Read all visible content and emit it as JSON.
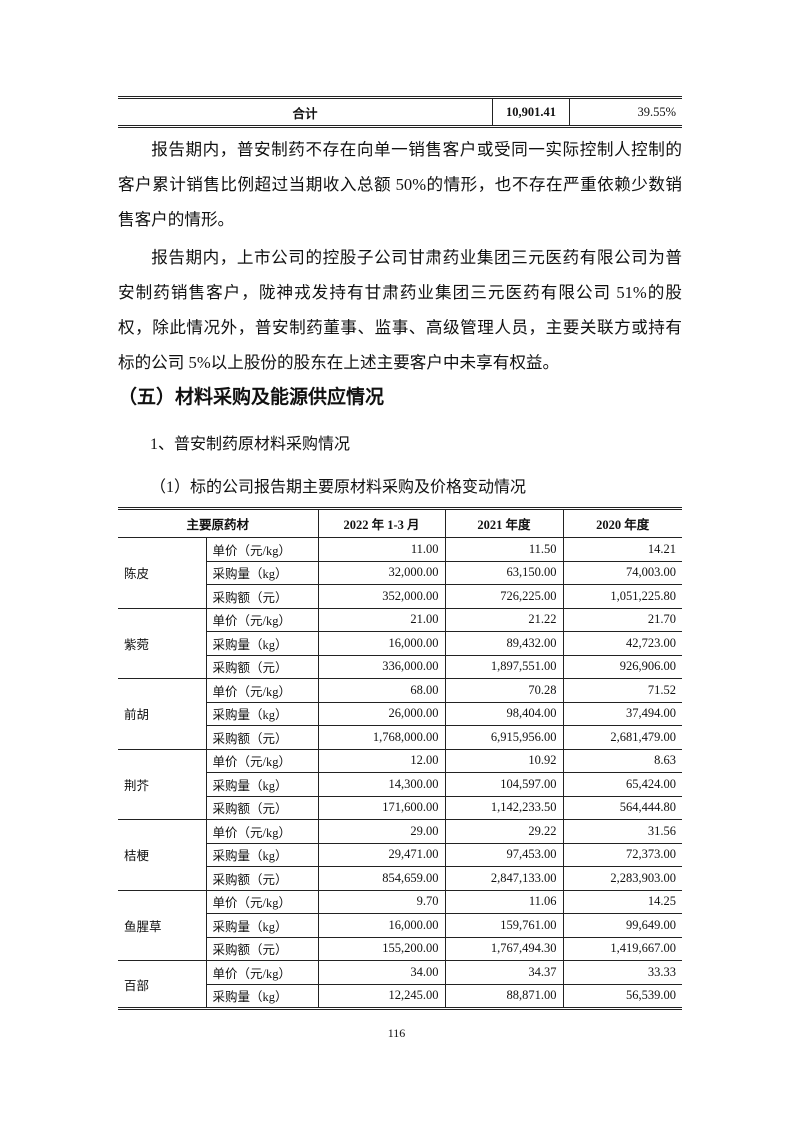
{
  "top_table": {
    "label": "合计",
    "value": "10,901.41",
    "percent": "39.55%"
  },
  "paragraphs": [
    "报告期内，普安制药不存在向单一销售客户或受同一实际控制人控制的客户累计销售比例超过当期收入总额 50%的情形，也不存在严重依赖少数销售客户的情形。",
    "报告期内，上市公司的控股子公司甘肃药业集团三元医药有限公司为普安制药销售客户，陇神戎发持有甘肃药业集团三元医药有限公司 51%的股权，除此情况外，普安制药董事、监事、高级管理人员，主要关联方或持有标的公司 5%以上股份的股东在上述主要客户中未享有权益。"
  ],
  "heading": "（五）材料采购及能源供应情况",
  "subheading1": "1、普安制药原材料采购情况",
  "subheading2": "（1）标的公司报告期主要原材料采购及价格变动情况",
  "table": {
    "headers": [
      "主要原药材",
      "2022 年 1-3 月",
      "2021 年度",
      "2020 年度"
    ],
    "groups": [
      {
        "name": "陈皮",
        "rows": [
          [
            "单价（元/kg）",
            "11.00",
            "11.50",
            "14.21"
          ],
          [
            "采购量（kg）",
            "32,000.00",
            "63,150.00",
            "74,003.00"
          ],
          [
            "采购额（元）",
            "352,000.00",
            "726,225.00",
            "1,051,225.80"
          ]
        ]
      },
      {
        "name": "紫菀",
        "rows": [
          [
            "单价（元/kg）",
            "21.00",
            "21.22",
            "21.70"
          ],
          [
            "采购量（kg）",
            "16,000.00",
            "89,432.00",
            "42,723.00"
          ],
          [
            "采购额（元）",
            "336,000.00",
            "1,897,551.00",
            "926,906.00"
          ]
        ]
      },
      {
        "name": "前胡",
        "rows": [
          [
            "单价（元/kg）",
            "68.00",
            "70.28",
            "71.52"
          ],
          [
            "采购量（kg）",
            "26,000.00",
            "98,404.00",
            "37,494.00"
          ],
          [
            "采购额（元）",
            "1,768,000.00",
            "6,915,956.00",
            "2,681,479.00"
          ]
        ]
      },
      {
        "name": "荆芥",
        "rows": [
          [
            "单价（元/kg）",
            "12.00",
            "10.92",
            "8.63"
          ],
          [
            "采购量（kg）",
            "14,300.00",
            "104,597.00",
            "65,424.00"
          ],
          [
            "采购额（元）",
            "171,600.00",
            "1,142,233.50",
            "564,444.80"
          ]
        ]
      },
      {
        "name": "桔梗",
        "rows": [
          [
            "单价（元/kg）",
            "29.00",
            "29.22",
            "31.56"
          ],
          [
            "采购量（kg）",
            "29,471.00",
            "97,453.00",
            "72,373.00"
          ],
          [
            "采购额（元）",
            "854,659.00",
            "2,847,133.00",
            "2,283,903.00"
          ]
        ]
      },
      {
        "name": "鱼腥草",
        "rows": [
          [
            "单价（元/kg）",
            "9.70",
            "11.06",
            "14.25"
          ],
          [
            "采购量（kg）",
            "16,000.00",
            "159,761.00",
            "99,649.00"
          ],
          [
            "采购额（元）",
            "155,200.00",
            "1,767,494.30",
            "1,419,667.00"
          ]
        ]
      },
      {
        "name": "百部",
        "rows": [
          [
            "单价（元/kg）",
            "34.00",
            "34.37",
            "33.33"
          ],
          [
            "采购量（kg）",
            "12,245.00",
            "88,871.00",
            "56,539.00"
          ]
        ]
      }
    ]
  },
  "page_number": "116"
}
